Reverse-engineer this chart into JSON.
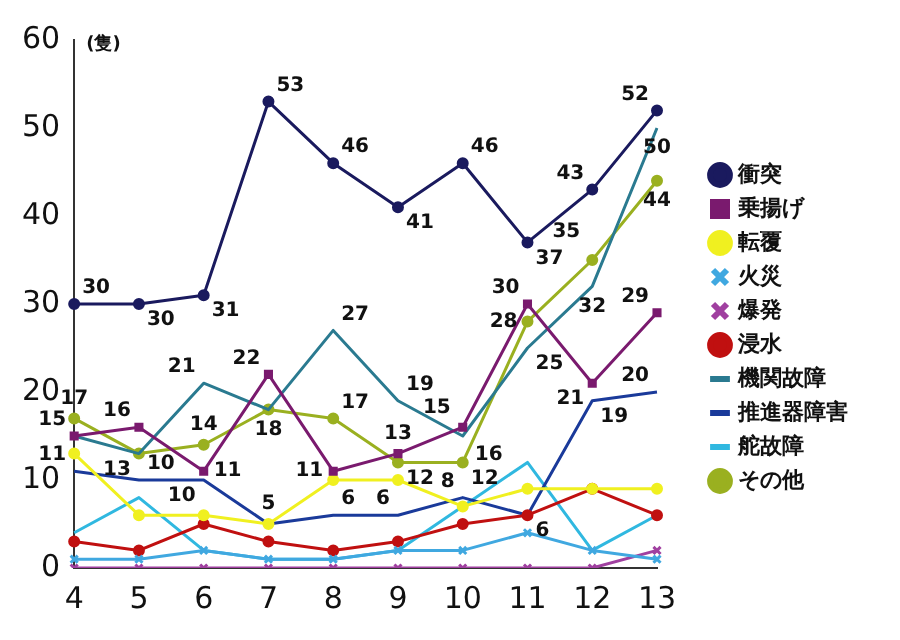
{
  "chart_data": {
    "type": "line",
    "ylabel": "(隻)",
    "categories": [
      "4",
      "5",
      "6",
      "7",
      "8",
      "9",
      "10",
      "11",
      "12",
      "13"
    ],
    "ylim": [
      0,
      60
    ],
    "yticks": [
      0,
      10,
      20,
      30,
      40,
      50,
      60
    ],
    "grid": false,
    "legend": "right",
    "series": [
      {
        "name": "衝突",
        "color": "#1a1a5e",
        "marker": "circle",
        "values": [
          30,
          30,
          31,
          53,
          46,
          41,
          46,
          37,
          43,
          52
        ],
        "value_labels": [
          "30",
          "30",
          "31",
          "53",
          "46",
          "41",
          "46",
          "37",
          "43",
          "52"
        ]
      },
      {
        "name": "乗揚げ",
        "color": "#7a1a6e",
        "marker": "square",
        "values": [
          15,
          16,
          11,
          22,
          11,
          13,
          16,
          30,
          21,
          29
        ],
        "value_labels": [
          "15",
          "16",
          "11",
          "22",
          "11",
          "13",
          "16",
          "30",
          "21",
          "29"
        ]
      },
      {
        "name": "転覆",
        "color": "#f0f020",
        "marker": "circle",
        "values": [
          13,
          6,
          6,
          5,
          10,
          10,
          7,
          9,
          9,
          9
        ]
      },
      {
        "name": "火災",
        "color": "#40a8e0",
        "marker": "cross",
        "values": [
          1,
          1,
          2,
          1,
          1,
          2,
          2,
          4,
          2,
          1
        ]
      },
      {
        "name": "爆発",
        "color": "#a040a0",
        "marker": "cross",
        "values": [
          0,
          0,
          0,
          0,
          0,
          0,
          0,
          0,
          0,
          2
        ]
      },
      {
        "name": "浸水",
        "color": "#c01010",
        "marker": "circle",
        "values": [
          3,
          2,
          5,
          3,
          2,
          3,
          5,
          6,
          9,
          6
        ]
      },
      {
        "name": "機関故障",
        "color": "#2a7a90",
        "marker": "none",
        "values": [
          15,
          13,
          21,
          18,
          27,
          19,
          15,
          25,
          32,
          50
        ],
        "value_labels": [
          null,
          null,
          "21",
          "18",
          "27",
          "19",
          "15",
          "25",
          "32",
          "50"
        ]
      },
      {
        "name": "推進器障害",
        "color": "#1a3a9a",
        "marker": "none",
        "values": [
          11,
          10,
          10,
          5,
          6,
          6,
          8,
          6,
          19,
          20
        ],
        "value_labels": [
          "11",
          "10",
          "10",
          "5",
          "6",
          "6",
          "8",
          "6",
          "19",
          "20"
        ]
      },
      {
        "name": "舵故障",
        "color": "#30b8e0",
        "marker": "none",
        "values": [
          4,
          8,
          2,
          1,
          1,
          2,
          7,
          12,
          2,
          6
        ]
      },
      {
        "name": "その他",
        "color": "#9ab020",
        "marker": "circle",
        "values": [
          17,
          13,
          14,
          18,
          17,
          12,
          12,
          28,
          35,
          44
        ],
        "value_labels": [
          "17",
          "13",
          "14",
          null,
          "17",
          "12",
          "12",
          "28",
          "35",
          "44"
        ]
      }
    ]
  }
}
